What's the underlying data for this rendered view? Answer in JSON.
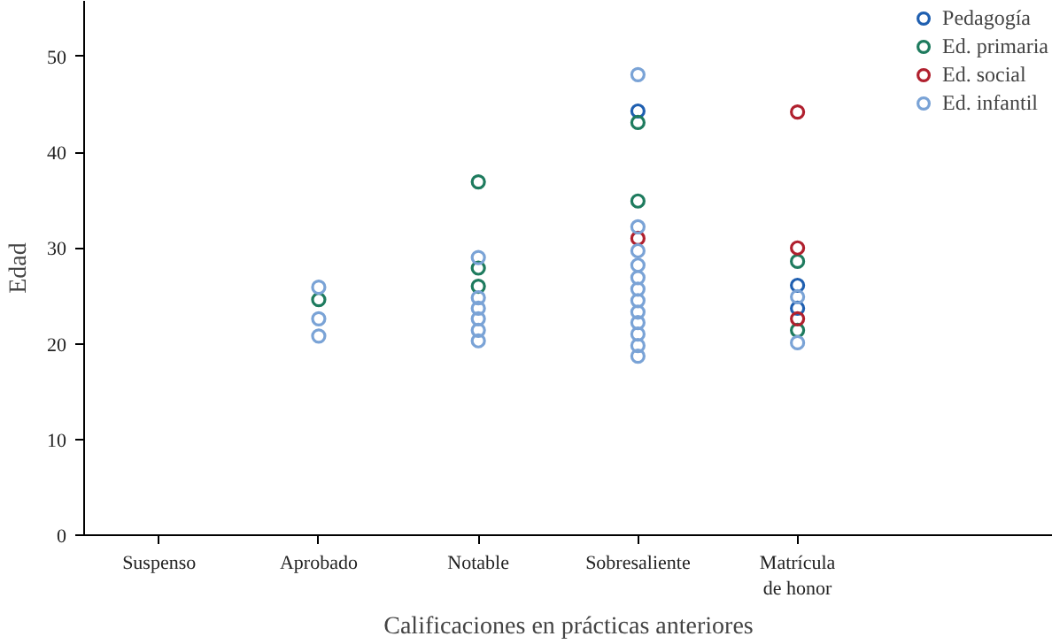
{
  "chart_data": {
    "type": "scatter",
    "xlabel": "Calificaciones en prácticas anteriores",
    "ylabel": "Edad",
    "categories": [
      "Suspenso",
      "Aprobado",
      "Notable",
      "Sobresaliente",
      "Matrícula\nde honor"
    ],
    "ylim": [
      0,
      55.8
    ],
    "yticks": [
      0,
      10,
      20,
      30,
      40,
      50
    ],
    "legend": "top right",
    "marker": "circle",
    "series": [
      {
        "name": "Pedagogía",
        "color": "#1f5fb0",
        "x": [
          "Sobresaliente",
          "Matrícula\nde honor",
          "Matrícula\nde honor"
        ],
        "values": [
          44.3,
          26.1,
          23.7
        ]
      },
      {
        "name": "Ed. primaria",
        "color": "#1e7b5e",
        "x": [
          "Aprobado",
          "Notable",
          "Notable",
          "Notable",
          "Sobresaliente",
          "Sobresaliente",
          "Matrícula\nde honor",
          "Matrícula\nde honor"
        ],
        "values": [
          24.6,
          36.9,
          27.9,
          26.0,
          43.1,
          34.9,
          28.6,
          21.4
        ]
      },
      {
        "name": "Ed. social",
        "color": "#b0202e",
        "x": [
          "Sobresaliente",
          "Matrícula\nde honor",
          "Matrícula\nde honor",
          "Matrícula\nde honor"
        ],
        "values": [
          31.0,
          44.2,
          30.0,
          22.6
        ]
      },
      {
        "name": "Ed. infantil",
        "color": "#7aa3d6",
        "x": [
          "Aprobado",
          "Aprobado",
          "Aprobado",
          "Notable",
          "Notable",
          "Notable",
          "Notable",
          "Notable",
          "Notable",
          "Sobresaliente",
          "Sobresaliente",
          "Sobresaliente",
          "Sobresaliente",
          "Sobresaliente",
          "Sobresaliente",
          "Sobresaliente",
          "Sobresaliente",
          "Sobresaliente",
          "Sobresaliente",
          "Sobresaliente",
          "Sobresaliente",
          "Matrícula\nde honor",
          "Matrícula\nde honor"
        ],
        "values": [
          25.9,
          22.6,
          20.8,
          29.0,
          24.8,
          23.7,
          22.6,
          21.4,
          20.3,
          48.1,
          32.2,
          29.7,
          28.2,
          26.9,
          25.7,
          24.5,
          23.3,
          22.2,
          21.0,
          19.8,
          18.7,
          24.9,
          20.1
        ]
      }
    ]
  }
}
